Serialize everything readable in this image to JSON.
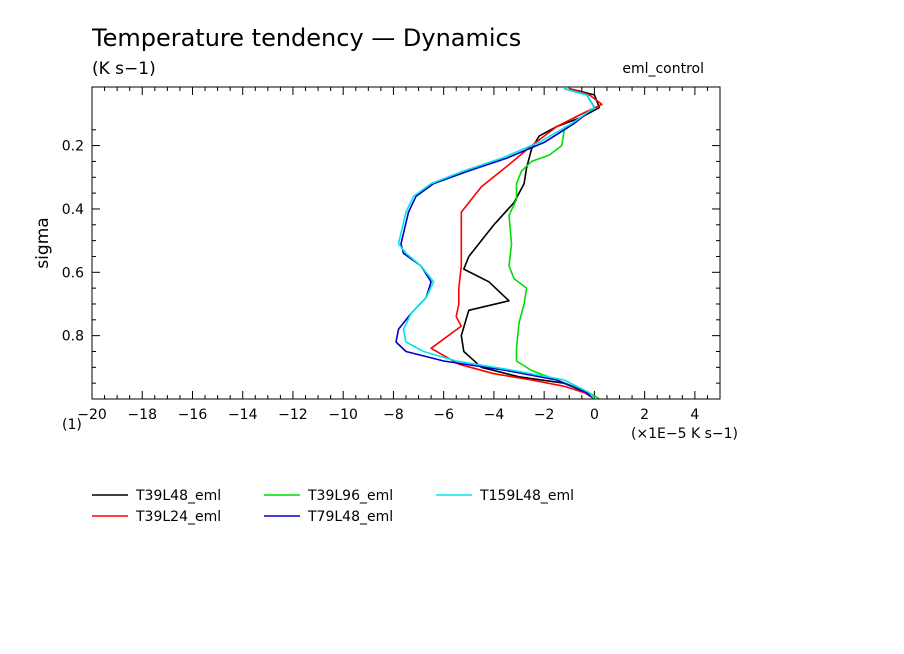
{
  "chart_data": {
    "type": "line",
    "title": "Temperature tendency — Dynamics",
    "subtitle": "(K s−1)",
    "experiment": "eml_control",
    "ylabel": "sigma",
    "x_units": "(×1E−5 K s−1)",
    "corner_label": "(1)",
    "xlim": [
      -20,
      5
    ],
    "ylim": [
      1.0,
      0.015
    ],
    "x_ticks": [
      -20,
      -18,
      -16,
      -14,
      -12,
      -10,
      -8,
      -6,
      -4,
      -2,
      0,
      2,
      4
    ],
    "x_tick_labels": [
      "−20",
      "−18",
      "−16",
      "−14",
      "−12",
      "−10",
      "−8",
      "−6",
      "−4",
      "−2",
      "0",
      "2",
      "4"
    ],
    "y_ticks": [
      0.2,
      0.4,
      0.6,
      0.8
    ],
    "y_tick_labels": [
      "0.2",
      "0.4",
      "0.6",
      "0.8"
    ],
    "grid": false,
    "legend_position": "bottom-left",
    "series": [
      {
        "name": "T39L48_eml",
        "color": "#000000",
        "x": [
          -1.0,
          0.0,
          0.2,
          -0.5,
          -1.5,
          -2.2,
          -2.5,
          -2.7,
          -2.8,
          -3.2,
          -4.0,
          -5.0,
          -5.2,
          -4.2,
          -3.4,
          -5.0,
          -5.3,
          -5.2,
          -4.5,
          -3.0,
          -1.2,
          -0.3,
          0.0
        ],
        "y": [
          0.02,
          0.04,
          0.08,
          0.11,
          0.14,
          0.17,
          0.21,
          0.27,
          0.32,
          0.38,
          0.45,
          0.55,
          0.59,
          0.63,
          0.69,
          0.72,
          0.8,
          0.85,
          0.9,
          0.93,
          0.95,
          0.98,
          1.0
        ]
      },
      {
        "name": "T39L24_eml",
        "color": "#ff0000",
        "x": [
          -1.0,
          -0.2,
          0.3,
          -0.5,
          -1.5,
          -2.5,
          -3.4,
          -4.5,
          -5.3,
          -5.3,
          -5.3,
          -5.4,
          -5.4,
          -5.5,
          -5.3,
          -6.5,
          -5.4,
          -4.0,
          -2.5,
          -1.2,
          -0.4,
          0.0
        ],
        "y": [
          0.02,
          0.04,
          0.07,
          0.1,
          0.14,
          0.2,
          0.26,
          0.33,
          0.41,
          0.5,
          0.58,
          0.65,
          0.7,
          0.74,
          0.77,
          0.84,
          0.89,
          0.92,
          0.94,
          0.96,
          0.98,
          1.0
        ]
      },
      {
        "name": "T39L96_eml",
        "color": "#00dd00",
        "x": [
          -1.2,
          -0.3,
          0.0,
          -0.5,
          -1.2,
          -1.3,
          -1.8,
          -2.5,
          -2.9,
          -3.1,
          -3.1,
          -3.4,
          -3.3,
          -3.4,
          -3.2,
          -2.7,
          -2.8,
          -3.0,
          -3.1,
          -3.1,
          -2.5,
          -1.5,
          -0.5,
          0.0,
          0.2
        ],
        "y": [
          0.02,
          0.04,
          0.08,
          0.11,
          0.15,
          0.2,
          0.23,
          0.25,
          0.28,
          0.32,
          0.37,
          0.42,
          0.51,
          0.58,
          0.62,
          0.65,
          0.7,
          0.76,
          0.84,
          0.88,
          0.91,
          0.94,
          0.97,
          0.99,
          1.0
        ]
      },
      {
        "name": "T79L48_eml",
        "color": "#0000cc",
        "x": [
          -1.2,
          -0.3,
          0.0,
          -0.8,
          -2.0,
          -3.5,
          -5.0,
          -6.4,
          -7.1,
          -7.4,
          -7.7,
          -7.6,
          -6.9,
          -6.5,
          -6.7,
          -7.3,
          -7.8,
          -7.9,
          -7.5,
          -6.0,
          -3.5,
          -1.5,
          -0.3,
          0.0
        ],
        "y": [
          0.02,
          0.04,
          0.08,
          0.13,
          0.19,
          0.24,
          0.28,
          0.32,
          0.36,
          0.41,
          0.51,
          0.54,
          0.58,
          0.63,
          0.68,
          0.73,
          0.78,
          0.82,
          0.85,
          0.88,
          0.91,
          0.94,
          0.98,
          1.0
        ]
      },
      {
        "name": "T159L48_eml",
        "color": "#00e6e6",
        "x": [
          -1.2,
          -0.3,
          0.0,
          -0.9,
          -2.2,
          -3.7,
          -5.2,
          -6.5,
          -7.2,
          -7.5,
          -7.8,
          -7.5,
          -6.9,
          -6.4,
          -6.7,
          -7.3,
          -7.6,
          -7.5,
          -6.8,
          -5.5,
          -3.2,
          -1.2,
          -0.2,
          0.0
        ],
        "y": [
          0.02,
          0.04,
          0.08,
          0.13,
          0.19,
          0.24,
          0.28,
          0.32,
          0.36,
          0.41,
          0.51,
          0.54,
          0.58,
          0.63,
          0.68,
          0.73,
          0.78,
          0.82,
          0.85,
          0.88,
          0.91,
          0.94,
          0.98,
          1.0
        ]
      }
    ]
  }
}
